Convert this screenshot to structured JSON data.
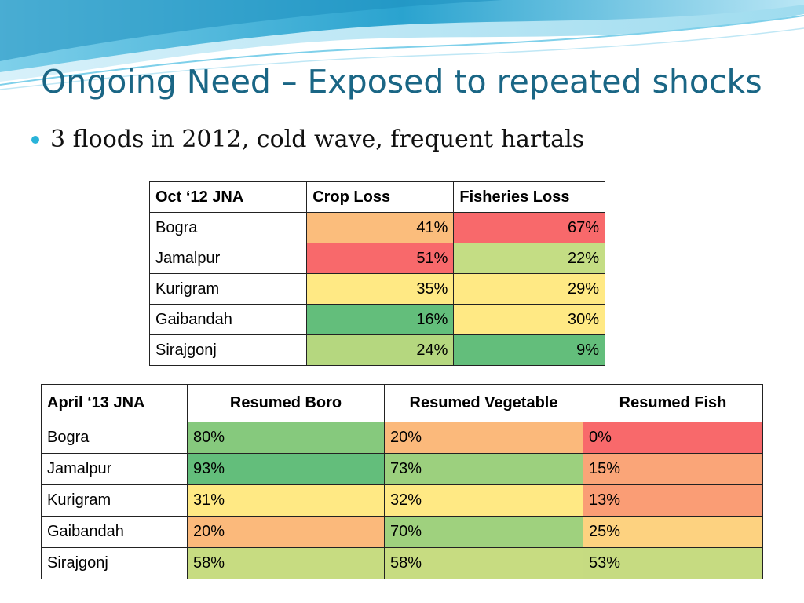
{
  "slide": {
    "title": "Ongoing Need – Exposed to repeated shocks",
    "bullet": "3 floods in 2012, cold wave, frequent hartals",
    "colors": {
      "title": "#1a6685",
      "bullet_marker": "#29b3d9",
      "wave_dark": "#2aa3cf",
      "wave_light": "#bfe7f5"
    }
  },
  "oct_table": {
    "headers": [
      "Oct ‘12 JNA",
      "Crop Loss",
      "Fisheries Loss"
    ],
    "rows": [
      {
        "district": "Bogra",
        "crop_loss": "41%",
        "fisheries_loss": "67%",
        "crop_color": "#fbbd7c",
        "fish_color": "#f8696b"
      },
      {
        "district": "Jamalpur",
        "crop_loss": "51%",
        "fisheries_loss": "22%",
        "crop_color": "#f8696b",
        "fish_color": "#c4dd84"
      },
      {
        "district": "Kurigram",
        "crop_loss": "35%",
        "fisheries_loss": "29%",
        "crop_color": "#ffe984",
        "fish_color": "#ffe984"
      },
      {
        "district": "Gaibandah",
        "crop_loss": "16%",
        "fisheries_loss": "30%",
        "crop_color": "#63be7b",
        "fish_color": "#ffe984"
      },
      {
        "district": "Sirajgonj",
        "crop_loss": "24%",
        "fisheries_loss": "9%",
        "crop_color": "#b5d77f",
        "fish_color": "#63be7b"
      }
    ]
  },
  "apr_table": {
    "headers": [
      "April ‘13 JNA",
      "Resumed Boro",
      "Resumed Vegetable",
      "Resumed Fish"
    ],
    "rows": [
      {
        "district": "Bogra",
        "boro": "80%",
        "vegetable": "20%",
        "fish": "0%",
        "boro_color": "#86c97d",
        "veg_color": "#fbb97b",
        "fish_color": "#f8696b"
      },
      {
        "district": "Jamalpur",
        "boro": "93%",
        "vegetable": "73%",
        "fish": "15%",
        "boro_color": "#63be7b",
        "veg_color": "#9cd07e",
        "fish_color": "#faa578"
      },
      {
        "district": "Kurigram",
        "boro": "31%",
        "vegetable": "32%",
        "fish": "13%",
        "boro_color": "#ffe984",
        "veg_color": "#ffe984",
        "fish_color": "#fa9d75"
      },
      {
        "district": "Gaibandah",
        "boro": "20%",
        "vegetable": "70%",
        "fish": "25%",
        "boro_color": "#fbb97b",
        "veg_color": "#9fd17e",
        "fish_color": "#fdd280"
      },
      {
        "district": "Sirajgonj",
        "boro": "58%",
        "vegetable": "58%",
        "fish": "53%",
        "boro_color": "#c7dc81",
        "veg_color": "#c7dc81",
        "fish_color": "#c6db81"
      }
    ]
  }
}
